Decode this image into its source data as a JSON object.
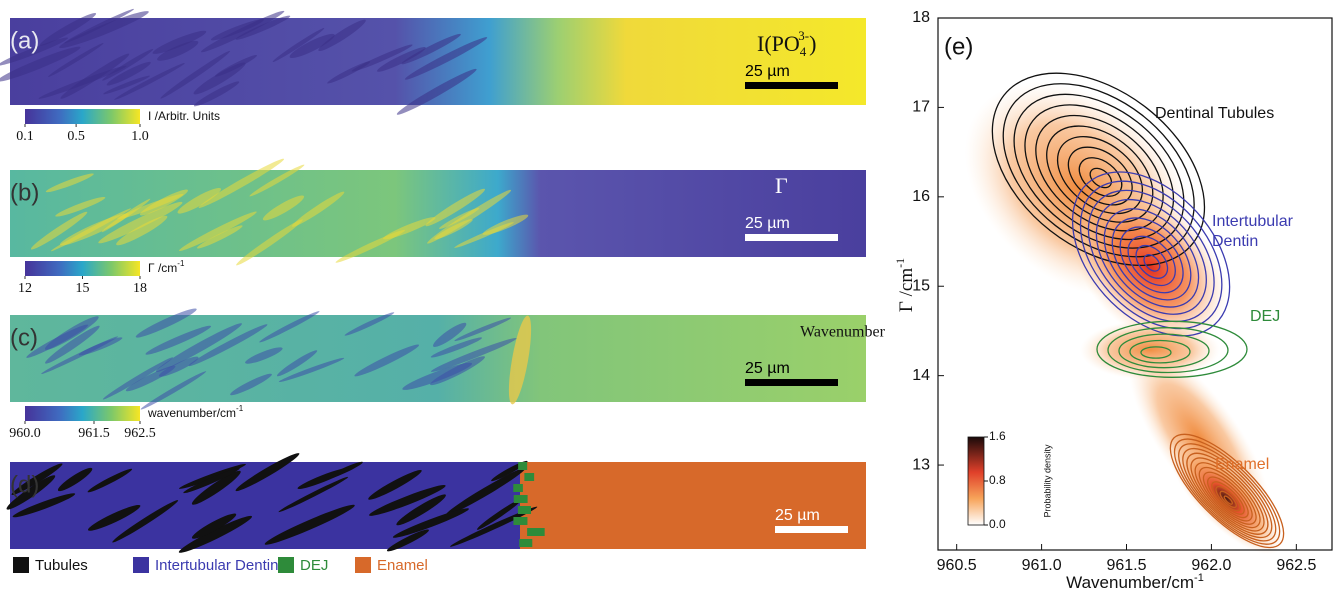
{
  "panels": [
    {
      "label": "(a)",
      "title_parts": [
        "I(PO",
        "4",
        "3-",
        ")"
      ],
      "scale_bar": "25 µm",
      "colorbar": {
        "label": "I /Arbitr. Units",
        "lim": [
          0.1,
          1.0
        ],
        "ticks": [
          0.1,
          0.5,
          {
            "value": 1,
            "label": "1.0"
          }
        ]
      }
    },
    {
      "label": "(b)",
      "title": "Γ",
      "scale_bar": "25 µm",
      "colorbar": {
        "label": "Γ /cm",
        "label_sup": "-1",
        "lim": [
          12,
          18
        ],
        "ticks": [
          12,
          15,
          18
        ]
      }
    },
    {
      "label": "(c)",
      "title": "Wavenumber",
      "scale_bar": "25 µm",
      "colorbar": {
        "label": "wavenumber/cm",
        "label_sup": "-1",
        "lim": [
          960,
          962.5
        ],
        "ticks": [
          {
            "value": 960,
            "label": "960.0"
          },
          961.5,
          962.5
        ]
      }
    },
    {
      "label": "(d)",
      "scale_bar": "25 µm",
      "legend": [
        {
          "name": "Tubules",
          "color": "#111111",
          "text_color": "#111111"
        },
        {
          "name": "Intertubular Dentin",
          "color": "#3b33a0",
          "text_color": "#3b3bb0"
        },
        {
          "name": "DEJ",
          "color": "#2e8b3a",
          "text_color": "#2e8b3a"
        },
        {
          "name": "Enamel",
          "color": "#d7692a",
          "text_color": "#d7692a"
        }
      ]
    }
  ],
  "chart_data": {
    "type": "contour",
    "label": "(e)",
    "xlabel": {
      "text": "Wavenumber/cm",
      "sup": "-1"
    },
    "ylabel": {
      "text": "Γ /cm",
      "sup": "-1"
    },
    "xlim": [
      960.39,
      962.71
    ],
    "ylim": [
      12.05,
      18
    ],
    "xticks": [
      960.5,
      {
        "value": 961,
        "label": "961.0"
      },
      961.5,
      {
        "value": 962,
        "label": "962.0"
      },
      962.5
    ],
    "yticks": [
      13,
      14,
      15,
      16,
      17,
      18
    ],
    "annotations": [
      {
        "text": "Dentinal Tubules",
        "color": "#111111"
      },
      {
        "text": "Intertubular",
        "color": "#3b3bb0"
      },
      {
        "text": "Dentin",
        "color": "#3b3bb0"
      },
      {
        "text": "DEJ",
        "color": "#2e8b3a"
      },
      {
        "text": "Enamel",
        "color": "#e0702a"
      }
    ],
    "colorbar": {
      "label": "Probability density",
      "lim": [
        0,
        1.6
      ],
      "ticks": [
        {
          "value": 0,
          "label": "0.0"
        },
        0.8,
        1.6
      ]
    }
  }
}
